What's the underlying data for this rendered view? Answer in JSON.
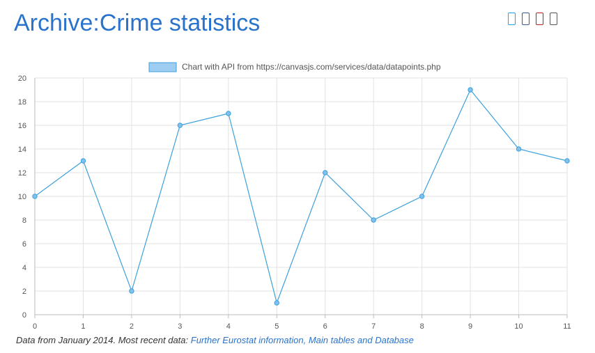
{
  "page": {
    "title": "Archive:Crime statistics"
  },
  "share_icons": [
    {
      "icon": "twitter-icon",
      "color": "#1da1f2"
    },
    {
      "icon": "facebook-icon",
      "color": "#3b5998"
    },
    {
      "icon": "linkedin-icon",
      "color": "#b22222"
    },
    {
      "icon": "share-icon",
      "color": "#555555"
    }
  ],
  "chart_data": {
    "type": "line",
    "legend": "Chart with API from https://canvasjs.com/services/data/datapoints.php",
    "legend_position": "top-center",
    "x": [
      0,
      1,
      2,
      3,
      4,
      5,
      6,
      7,
      8,
      9,
      10,
      11
    ],
    "series": [
      {
        "name": "Chart with API from https://canvasjs.com/services/data/datapoints.php",
        "color": "#3ca0db",
        "values": [
          10,
          13,
          2,
          16,
          17,
          1,
          12,
          8,
          10,
          19,
          14,
          13
        ]
      }
    ],
    "xticks": [
      "0",
      "1",
      "2",
      "3",
      "4",
      "5",
      "6",
      "7",
      "8",
      "9",
      "10",
      "11"
    ],
    "yticks": [
      "0",
      "2",
      "4",
      "6",
      "8",
      "10",
      "12",
      "14",
      "16",
      "18",
      "20"
    ],
    "xlim": [
      0,
      11
    ],
    "ylim": [
      0,
      20
    ],
    "grid": true
  },
  "caption": {
    "text": "Data from January 2014. Most recent data: ",
    "link": "Further Eurostat information, Main tables and Database"
  }
}
